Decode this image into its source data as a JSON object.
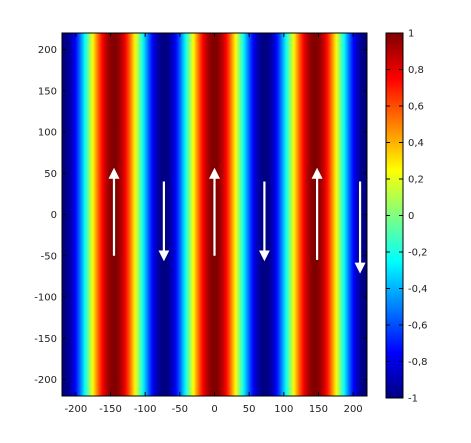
{
  "chart_data": {
    "type": "heatmap",
    "title": "",
    "xlabel": "",
    "ylabel": "",
    "xlim": [
      -220,
      220
    ],
    "ylim": [
      -220,
      220
    ],
    "x_ticks": [
      -200,
      -150,
      -100,
      -50,
      0,
      50,
      100,
      150,
      200
    ],
    "y_ticks": [
      200,
      150,
      100,
      50,
      0,
      -50,
      -100,
      -150,
      -200
    ],
    "colormap": "jet",
    "color_range": [
      -1,
      1
    ],
    "colorbar_ticks": [
      "1",
      "0,8",
      "0,6",
      "0,4",
      "0,2",
      "0",
      "-0,2",
      "-0,4",
      "-0,6",
      "-0,8",
      "-1"
    ],
    "field": {
      "description": "cos(2*pi*(x - x0)/period) stripes varying along x only",
      "period": 145,
      "phase_x0": 0
    },
    "arrows": [
      {
        "direction": "up",
        "x": -145,
        "y_from": -50,
        "y_to": 50
      },
      {
        "direction": "down",
        "x": -73,
        "y_from": 40,
        "y_to": -50
      },
      {
        "direction": "up",
        "x": 0,
        "y_from": -50,
        "y_to": 50
      },
      {
        "direction": "down",
        "x": 72,
        "y_from": 40,
        "y_to": -50
      },
      {
        "direction": "up",
        "x": 148,
        "y_from": -55,
        "y_to": 50
      },
      {
        "direction": "down",
        "x": 210,
        "y_from": 40,
        "y_to": -65
      }
    ],
    "colors": {
      "arrow": "#ffffff",
      "frame": "#000000"
    }
  }
}
